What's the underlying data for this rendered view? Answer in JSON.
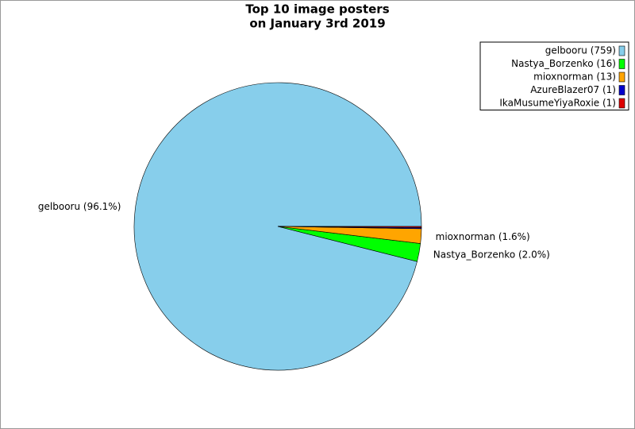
{
  "chart_data": {
    "type": "pie",
    "title": [
      "Top 10 image posters",
      "on January 3rd 2019"
    ],
    "categories": [
      "gelbooru",
      "Nastya_Borzenko",
      "mioxnorman",
      "AzureBlazer07",
      "IkaMusumeYiyaRoxie"
    ],
    "values": [
      759,
      16,
      13,
      1,
      1
    ],
    "legend_labels": [
      "gelbooru (759)",
      "Nastya_Borzenko (16)",
      "mioxnorman (13)",
      "AzureBlazer07 (1)",
      "IkaMusumeYiyaRoxie (1)"
    ],
    "slice_labels": [
      "gelbooru (96.1%)",
      "Nastya_Borzenko (2.0%)",
      "mioxnorman (1.6%)",
      null,
      null
    ],
    "colors": [
      "#87ceeb",
      "#00ff00",
      "#ffa500",
      "#0000cc",
      "#dd0000"
    ],
    "legend": "upper right"
  }
}
